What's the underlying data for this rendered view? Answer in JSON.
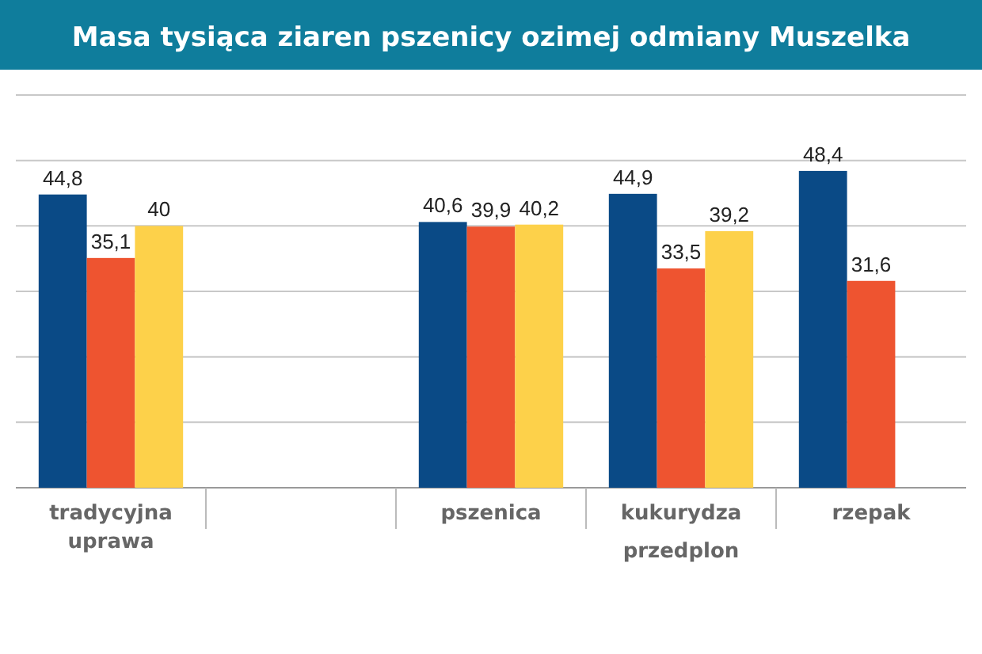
{
  "chart_data": {
    "type": "bar",
    "title": "Masa tysiąca ziaren pszenicy ozimej odmiany Muszelka",
    "categories": [
      "tradycyjna uprawa",
      null,
      "pszenica",
      "kukurydza",
      "rzepak"
    ],
    "series": [
      {
        "color": "#0a4a86",
        "values": [
          44.8,
          null,
          40.6,
          44.9,
          48.4
        ],
        "value_labels": [
          "44,8",
          null,
          "40,6",
          "44,9",
          "48,4"
        ]
      },
      {
        "color": "#ee5430",
        "values": [
          35.1,
          null,
          39.9,
          33.5,
          31.6
        ],
        "value_labels": [
          "35,1",
          null,
          "39,9",
          "33,5",
          "31,6"
        ]
      },
      {
        "color": "#fdd14a",
        "values": [
          40,
          null,
          40.2,
          39.2,
          null
        ],
        "value_labels": [
          "40",
          null,
          "40,2",
          "39,2",
          null
        ]
      }
    ],
    "ylim": [
      0,
      60
    ],
    "yticks": [
      {
        "value": 0,
        "label": null
      },
      {
        "value": 10,
        "label": null
      },
      {
        "value": 20,
        "label": null
      },
      {
        "value": 30,
        "label": null
      },
      {
        "value": 40,
        "label": null
      },
      {
        "value": 50,
        "label": null
      },
      {
        "value": 60,
        "label": null
      }
    ],
    "tick_labels": "x",
    "grid": "y",
    "annotations": [
      "przedplon"
    ]
  }
}
